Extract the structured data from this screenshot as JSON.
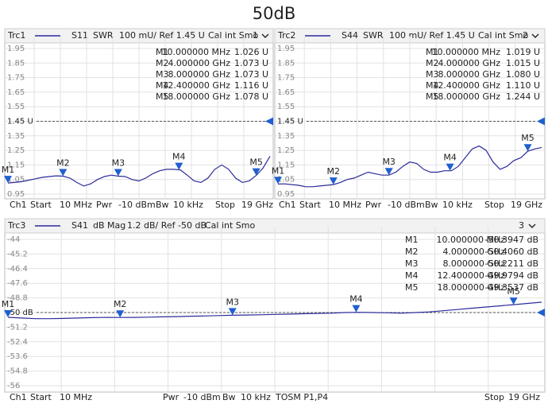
{
  "title": "50dB",
  "chart_data": [
    {
      "type": "line",
      "trace": "Trc1",
      "format": "SWR",
      "scale": "100 mU/ Ref 1.45 U",
      "cal": "Cal int Smo",
      "window": "1",
      "x": [
        0.01,
        0.5,
        1,
        1.5,
        2,
        2.5,
        3,
        3.5,
        4,
        4.5,
        5,
        5.5,
        6,
        6.5,
        7,
        7.5,
        8,
        8.5,
        9,
        9.5,
        10,
        10.5,
        11,
        11.5,
        12,
        12.5,
        13,
        13.5,
        14,
        14.5,
        15,
        15.5,
        16,
        16.5,
        17,
        17.5,
        18,
        18.5,
        19
      ],
      "series": [
        {
          "name": "S11",
          "color": "#2b2b9b",
          "values": [
            1.026,
            1.03,
            1.035,
            1.045,
            1.055,
            1.065,
            1.07,
            1.075,
            1.073,
            1.06,
            1.03,
            1.005,
            1.02,
            1.05,
            1.07,
            1.08,
            1.073,
            1.07,
            1.05,
            1.04,
            1.06,
            1.09,
            1.11,
            1.12,
            1.12,
            1.116,
            1.08,
            1.04,
            1.03,
            1.06,
            1.12,
            1.15,
            1.12,
            1.06,
            1.03,
            1.04,
            1.078,
            1.13,
            1.21
          ]
        }
      ],
      "xlim": [
        0.01,
        19
      ],
      "ylim": [
        0.95,
        1.95
      ],
      "yticks": [
        1.95,
        1.85,
        1.75,
        1.65,
        1.55,
        {
          "value": 1.45,
          "label": "1.45 U"
        },
        1.35,
        1.25,
        1.15,
        1.05,
        0.95
      ],
      "ref": 1.45,
      "grid": true,
      "marker_color": "#1f5fcf",
      "markers": [
        {
          "name": "M1",
          "x": 0.01,
          "x_label": "10.000000 MHz",
          "value": 1.026,
          "value_label": "1.026 U"
        },
        {
          "name": "M2",
          "x": 4,
          "x_label": "4.000000 GHz",
          "value": 1.073,
          "value_label": "1.073 U"
        },
        {
          "name": "M3",
          "x": 8,
          "x_label": "8.000000 GHz",
          "value": 1.073,
          "value_label": "1.073 U"
        },
        {
          "name": "M4",
          "x": 12.4,
          "x_label": "12.400000 GHz",
          "value": 1.116,
          "value_label": "1.116 U"
        },
        {
          "name": "M5",
          "x": 18,
          "x_label": "18.000000 GHz",
          "value": 1.078,
          "value_label": "1.078 U"
        }
      ],
      "footer": [
        "Ch1",
        "Start",
        "10 MHz",
        "Pwr",
        "-10 dBm",
        "Bw",
        "10 kHz",
        "Stop",
        "19 GHz"
      ]
    },
    {
      "type": "line",
      "trace": "Trc2",
      "format": "SWR",
      "scale": "100 mU/ Ref 1.45 U",
      "cal": "Cal int Smo",
      "window": "2",
      "x": [
        0.01,
        0.5,
        1,
        1.5,
        2,
        2.5,
        3,
        3.5,
        4,
        4.5,
        5,
        5.5,
        6,
        6.5,
        7,
        7.5,
        8,
        8.5,
        9,
        9.5,
        10,
        10.5,
        11,
        11.5,
        12,
        12.5,
        13,
        13.5,
        14,
        14.5,
        15,
        15.5,
        16,
        16.5,
        17,
        17.5,
        18,
        18.5,
        19
      ],
      "series": [
        {
          "name": "S44",
          "color": "#2b2b9b",
          "values": [
            1.019,
            1.02,
            1.015,
            1.01,
            1.0,
            1.0,
            1.005,
            1.01,
            1.015,
            1.03,
            1.05,
            1.06,
            1.08,
            1.1,
            1.09,
            1.08,
            1.08,
            1.1,
            1.14,
            1.17,
            1.16,
            1.12,
            1.1,
            1.1,
            1.11,
            1.11,
            1.14,
            1.2,
            1.26,
            1.28,
            1.25,
            1.17,
            1.12,
            1.14,
            1.18,
            1.2,
            1.244,
            1.26,
            1.27
          ]
        }
      ],
      "xlim": [
        0.01,
        19
      ],
      "ylim": [
        0.95,
        1.95
      ],
      "yticks": [
        1.95,
        1.85,
        1.75,
        1.65,
        1.55,
        {
          "value": 1.45,
          "label": "1.45 U"
        },
        1.35,
        1.25,
        1.15,
        1.05,
        0.95
      ],
      "ref": 1.45,
      "grid": true,
      "marker_color": "#1f5fcf",
      "markers": [
        {
          "name": "M1",
          "x": 0.01,
          "x_label": "10.000000 MHz",
          "value": 1.019,
          "value_label": "1.019 U"
        },
        {
          "name": "M2",
          "x": 4,
          "x_label": "4.000000 GHz",
          "value": 1.015,
          "value_label": "1.015 U"
        },
        {
          "name": "M3",
          "x": 8,
          "x_label": "8.000000 GHz",
          "value": 1.08,
          "value_label": "1.080 U"
        },
        {
          "name": "M4",
          "x": 12.4,
          "x_label": "12.400000 GHz",
          "value": 1.11,
          "value_label": "1.110 U"
        },
        {
          "name": "M5",
          "x": 18,
          "x_label": "18.000000 GHz",
          "value": 1.244,
          "value_label": "1.244 U"
        }
      ],
      "footer": [
        "Ch1",
        "Start",
        "10 MHz",
        "Pwr",
        "-10 dBm",
        "Bw",
        "10 kHz",
        "Stop",
        "19 GHz"
      ]
    },
    {
      "type": "line",
      "trace": "Trc3",
      "format": "dB Mag",
      "scale": "1.2 dB/ Ref -50 dB",
      "cal": "Cal int Smo",
      "window": "3",
      "x": [
        0.01,
        0.5,
        1,
        1.5,
        2,
        2.5,
        3,
        3.5,
        4,
        4.5,
        5,
        5.5,
        6,
        6.5,
        7,
        7.5,
        8,
        8.5,
        9,
        9.5,
        10,
        10.5,
        11,
        11.5,
        12,
        12.5,
        13,
        13.5,
        14,
        14.5,
        15,
        15.5,
        16,
        16.5,
        17,
        17.5,
        18,
        18.5,
        19
      ],
      "series": [
        {
          "name": "S41",
          "color": "#2b2b9b",
          "values": [
            -50.39,
            -50.45,
            -50.5,
            -50.5,
            -50.48,
            -50.45,
            -50.42,
            -50.4,
            -50.406,
            -50.4,
            -50.38,
            -50.35,
            -50.33,
            -50.3,
            -50.28,
            -50.25,
            -50.221,
            -50.2,
            -50.18,
            -50.15,
            -50.13,
            -50.1,
            -50.08,
            -50.05,
            -50.0,
            -49.98,
            -50.0,
            -50.02,
            -50.05,
            -50.0,
            -49.95,
            -49.85,
            -49.75,
            -49.65,
            -49.55,
            -49.45,
            -49.354,
            -49.25,
            -49.15
          ]
        }
      ],
      "xlim": [
        0.01,
        19
      ],
      "ylim": [
        -56,
        -44
      ],
      "yticks": [
        -44,
        -45.2,
        -46.4,
        -47.6,
        -48.8,
        {
          "value": -50,
          "label": "-50 dB"
        },
        -51.2,
        -52.4,
        -53.6,
        -54.8,
        -56
      ],
      "ref": -50,
      "grid": true,
      "marker_color": "#1f5fcf",
      "markers": [
        {
          "name": "M1",
          "x": 0.01,
          "x_label": "10.000000 MHz",
          "value": -50.3947,
          "value_label": "-50.3947 dB"
        },
        {
          "name": "M2",
          "x": 4,
          "x_label": "4.000000 GHz",
          "value": -50.406,
          "value_label": "-50.4060 dB"
        },
        {
          "name": "M3",
          "x": 8,
          "x_label": "8.000000 GHz",
          "value": -50.2211,
          "value_label": "-50.2211 dB"
        },
        {
          "name": "M4",
          "x": 12.4,
          "x_label": "12.400000 GHz",
          "value": -49.9794,
          "value_label": "-49.9794 dB"
        },
        {
          "name": "M5",
          "x": 18,
          "x_label": "18.000000 GHz",
          "value": -49.3537,
          "value_label": "-49.3537 dB"
        }
      ],
      "footer": [
        "Ch1",
        "Start",
        "10 MHz",
        "Pwr",
        "-10 dBm",
        "Bw",
        "10 kHz",
        "TOSM P1,P4",
        "Stop",
        "19 GHz"
      ]
    }
  ]
}
